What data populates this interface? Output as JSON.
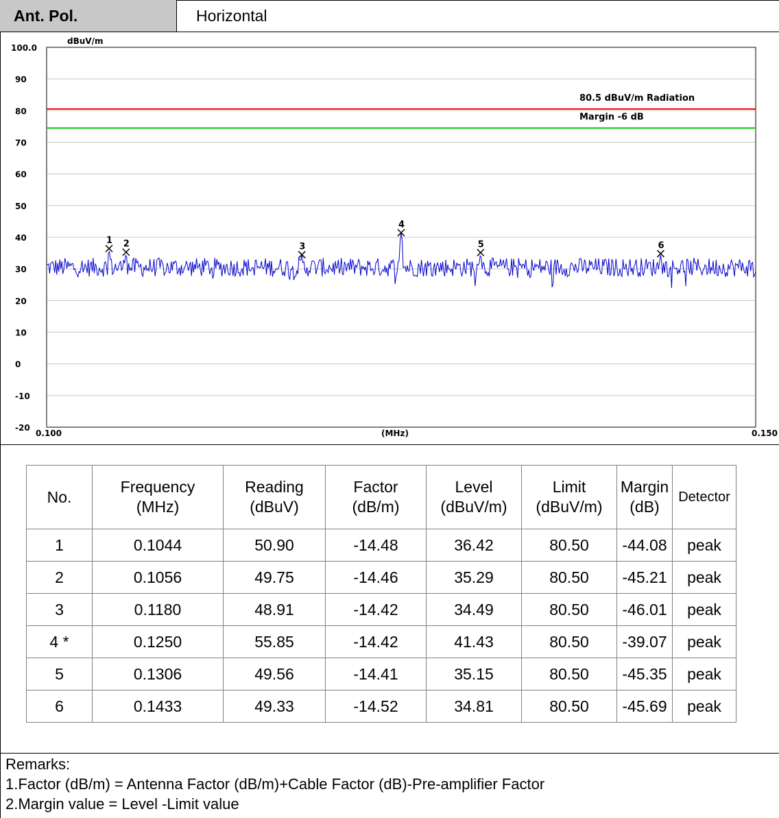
{
  "header": {
    "pol_label": "Ant. Pol.",
    "pol_value": "Horizontal"
  },
  "chart_data": {
    "type": "line",
    "ylabel": "dBuV/m",
    "xlabel": "(MHz)",
    "xlim": [
      0.1,
      0.15
    ],
    "ylim": [
      -20,
      100
    ],
    "x_tick_labels": [
      "0.100",
      "0.150"
    ],
    "y_tick_labels": [
      "100.0",
      "90",
      "80",
      "70",
      "60",
      "50",
      "40",
      "30",
      "20",
      "10",
      "0",
      "-10",
      "-20"
    ],
    "limit_line": {
      "value": 80.5,
      "label": "80.5 dBuV/m  Radiation",
      "color": "#ff0000"
    },
    "margin_line": {
      "value": 74.5,
      "label": "Margin -6 dB",
      "color": "#00cc00"
    },
    "trace_color": "#0000cc",
    "trace_baseline": 30.5,
    "markers": [
      {
        "id": "1",
        "x": 0.1044,
        "y": 36.42
      },
      {
        "id": "2",
        "x": 0.1056,
        "y": 35.29
      },
      {
        "id": "3",
        "x": 0.118,
        "y": 34.49
      },
      {
        "id": "4",
        "x": 0.125,
        "y": 41.43
      },
      {
        "id": "5",
        "x": 0.1306,
        "y": 35.15
      },
      {
        "id": "6",
        "x": 0.1433,
        "y": 34.81
      }
    ],
    "grid": true
  },
  "table": {
    "headers": [
      {
        "line1": "No.",
        "line2": ""
      },
      {
        "line1": "Frequency",
        "line2": "(MHz)"
      },
      {
        "line1": "Reading",
        "line2": "(dBuV)"
      },
      {
        "line1": "Factor",
        "line2": "(dB/m)"
      },
      {
        "line1": "Level",
        "line2": "(dBuV/m)"
      },
      {
        "line1": "Limit",
        "line2": "(dBuV/m)"
      },
      {
        "line1": "Margin",
        "line2": "(dB)"
      },
      {
        "line1": "Detector",
        "line2": ""
      }
    ],
    "rows": [
      [
        "1",
        "0.1044",
        "50.90",
        "-14.48",
        "36.42",
        "80.50",
        "-44.08",
        "peak"
      ],
      [
        "2",
        "0.1056",
        "49.75",
        "-14.46",
        "35.29",
        "80.50",
        "-45.21",
        "peak"
      ],
      [
        "3",
        "0.1180",
        "48.91",
        "-14.42",
        "34.49",
        "80.50",
        "-46.01",
        "peak"
      ],
      [
        "4  *",
        "0.1250",
        "55.85",
        "-14.42",
        "41.43",
        "80.50",
        "-39.07",
        "peak"
      ],
      [
        "5",
        "0.1306",
        "49.56",
        "-14.41",
        "35.15",
        "80.50",
        "-45.35",
        "peak"
      ],
      [
        "6",
        "0.1433",
        "49.33",
        "-14.52",
        "34.81",
        "80.50",
        "-45.69",
        "peak"
      ]
    ]
  },
  "remarks": {
    "title": "Remarks:",
    "line1": "1.Factor (dB/m) = Antenna Factor (dB/m)+Cable Factor (dB)-Pre-amplifier Factor",
    "line2": "2.Margin value = Level -Limit value"
  }
}
